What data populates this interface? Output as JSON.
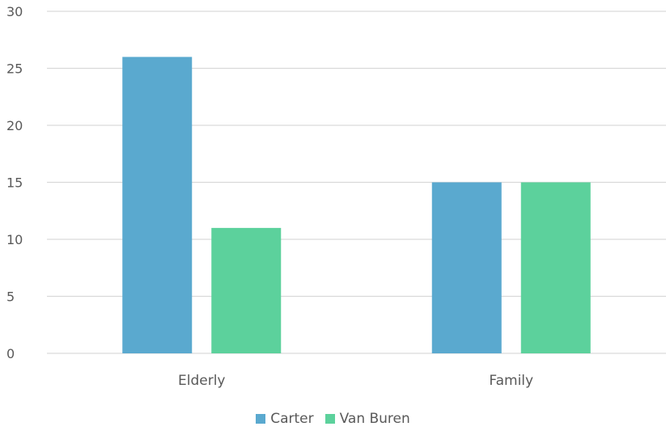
{
  "chart_data": {
    "type": "bar",
    "categories": [
      "Elderly",
      "Family"
    ],
    "series": [
      {
        "name": "Carter",
        "values": [
          26,
          15
        ],
        "color": "#5aa9cf"
      },
      {
        "name": "Van Buren",
        "values": [
          11,
          15
        ],
        "color": "#5cd19c"
      }
    ],
    "ylim": [
      0,
      30
    ],
    "yticks": [
      0,
      5,
      10,
      15,
      20,
      25,
      30
    ],
    "grid": true,
    "legend_position": "bottom"
  }
}
